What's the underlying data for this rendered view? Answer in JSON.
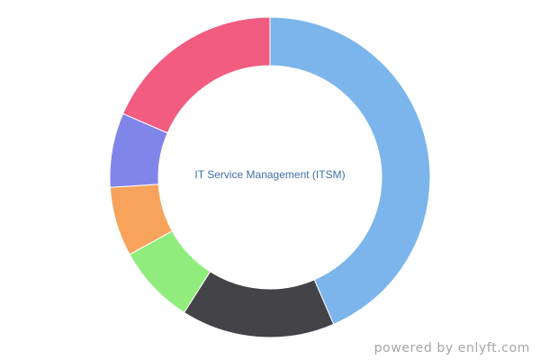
{
  "chart_data": {
    "type": "pie",
    "donut": true,
    "center_label": "IT Service Management (ITSM)",
    "slices": [
      {
        "value": 43.5,
        "color": "#7cb5ec"
      },
      {
        "value": 15.5,
        "color": "#434348"
      },
      {
        "value": 8.0,
        "color": "#90ed7d"
      },
      {
        "value": 7.0,
        "color": "#f7a35c"
      },
      {
        "value": 7.5,
        "color": "#8085e9"
      },
      {
        "value": 18.5,
        "color": "#f15c80"
      }
    ],
    "start_angle_deg": 0,
    "direction": "clockwise",
    "legend": "none"
  },
  "footer": {
    "credit": "powered by enlyft.com"
  }
}
